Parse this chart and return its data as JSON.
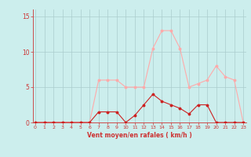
{
  "x": [
    0,
    1,
    2,
    3,
    4,
    5,
    6,
    7,
    8,
    9,
    10,
    11,
    12,
    13,
    14,
    15,
    16,
    17,
    18,
    19,
    20,
    21,
    22,
    23
  ],
  "y_light": [
    0,
    0,
    0,
    0,
    0,
    0,
    0,
    6,
    6,
    6,
    5,
    5,
    5,
    10.5,
    13,
    13,
    10.5,
    5,
    5.5,
    6,
    8,
    6.5,
    6,
    0
  ],
  "y_dark": [
    0,
    0,
    0,
    0,
    0,
    0,
    0,
    1.5,
    1.5,
    1.5,
    0,
    1,
    2.5,
    4,
    3,
    2.5,
    2,
    1.2,
    2.5,
    2.5,
    0,
    0,
    0,
    0
  ],
  "line_color_light": "#ffaaaa",
  "line_color_dark": "#cc2222",
  "bg_color": "#cceeed",
  "grid_color": "#aacccc",
  "axis_color": "#cc3333",
  "tick_color": "#cc3333",
  "xlabel": "Vent moyen/en rafales ( km/h )",
  "ylim": [
    0,
    16
  ],
  "xlim": [
    0,
    23
  ],
  "yticks": [
    0,
    5,
    10,
    15
  ],
  "xticks": [
    0,
    1,
    2,
    3,
    4,
    5,
    6,
    7,
    8,
    9,
    10,
    11,
    12,
    13,
    14,
    15,
    16,
    17,
    18,
    19,
    20,
    21,
    22,
    23
  ]
}
